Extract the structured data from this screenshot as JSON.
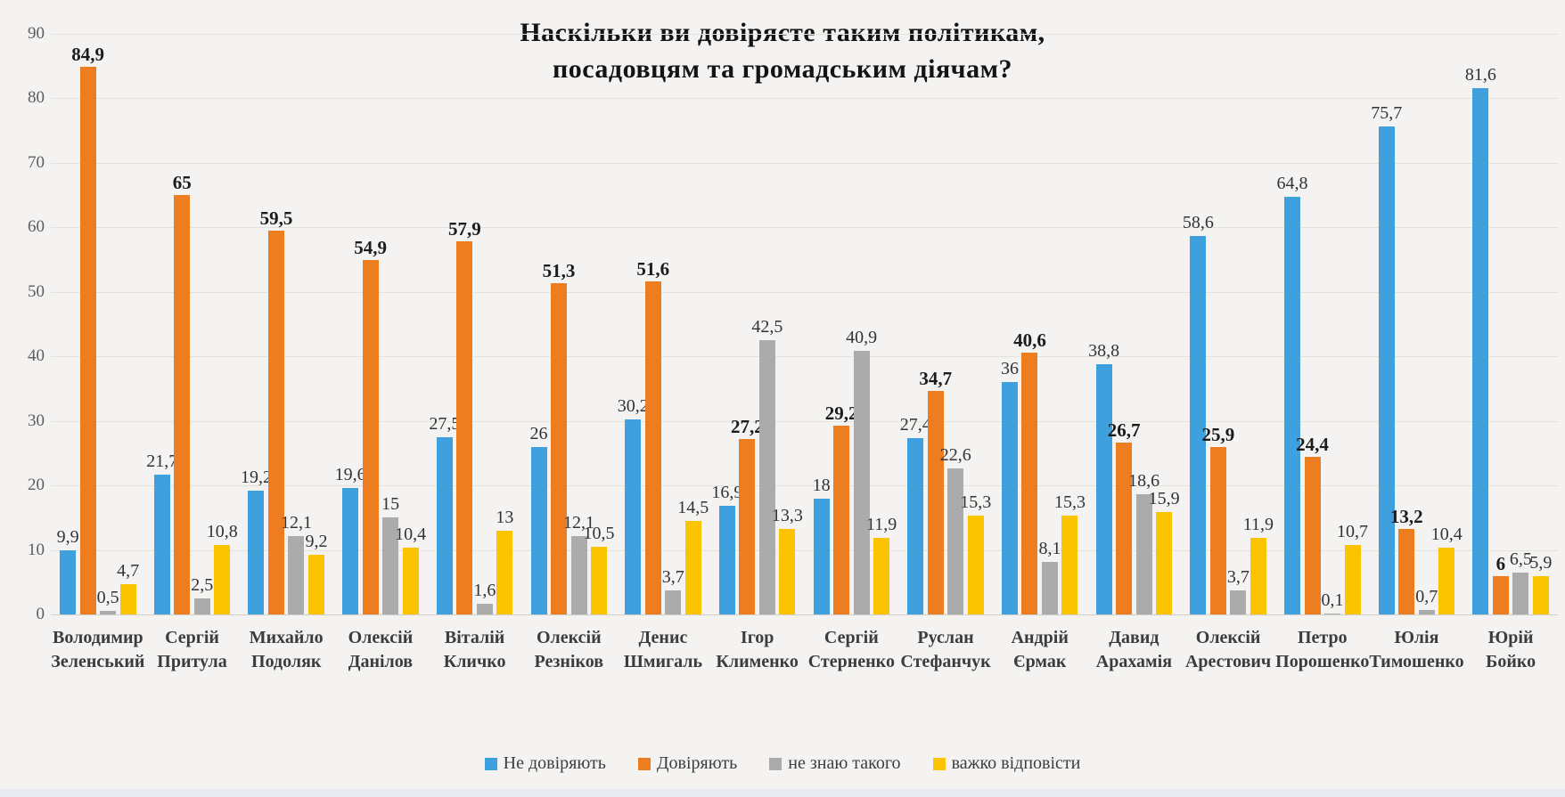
{
  "title": {
    "line1": "Наскільки ви довіряєте таким політикам,",
    "line2": "посадовцям та громадським діячам?"
  },
  "colors": {
    "background": "#f4f3f1",
    "gridline": "#e3e2df",
    "series_blue": "#3fa0de",
    "series_orange": "#ee7d22",
    "series_gray": "#ababab",
    "series_yellow": "#fcc400"
  },
  "chart_data": {
    "type": "bar",
    "title": "Наскільки ви довіряєте таким політикам, посадовцям та громадським діячам?",
    "categories": [
      "Володимир Зеленський",
      "Сергій Притула",
      "Михайло Подоляк",
      "Олексій Данілов",
      "Віталій Кличко",
      "Олексій Резніков",
      "Денис Шмигаль",
      "Ігор Клименко",
      "Сергій Стерненко",
      "Руслан Стефанчук",
      "Андрій Єрмак",
      "Давид Арахамія",
      "Олексій Арестович",
      "Петро Порошенко",
      "Юлія Тимошенко",
      "Юрій Бойко"
    ],
    "series": [
      {
        "name": "Не довіряють",
        "color": "#3fa0de",
        "bold_labels": false,
        "values": [
          9.9,
          21.7,
          19.2,
          19.6,
          27.5,
          26,
          30.2,
          16.9,
          18,
          27.4,
          36,
          38.8,
          58.6,
          64.8,
          75.7,
          81.6
        ]
      },
      {
        "name": "Довіряють",
        "color": "#ee7d22",
        "bold_labels": true,
        "values": [
          84.9,
          65,
          59.5,
          54.9,
          57.9,
          51.3,
          51.6,
          27.2,
          29.2,
          34.7,
          40.6,
          26.7,
          25.9,
          24.4,
          13.2,
          6
        ]
      },
      {
        "name": "не знаю такого",
        "color": "#ababab",
        "bold_labels": false,
        "values": [
          0.5,
          2.5,
          12.1,
          15,
          1.6,
          12.1,
          3.7,
          42.5,
          40.9,
          22.6,
          8.1,
          18.6,
          3.7,
          0.1,
          0.7,
          6.5
        ]
      },
      {
        "name": "важко відповісти",
        "color": "#fcc400",
        "bold_labels": false,
        "values": [
          4.7,
          10.8,
          9.2,
          10.4,
          13,
          10.5,
          14.5,
          13.3,
          11.9,
          15.3,
          15.3,
          15.9,
          11.9,
          10.7,
          10.4,
          5.9
        ]
      }
    ],
    "decimal_separator": ",",
    "ylabel": "",
    "xlabel": "",
    "ylim": [
      0,
      90
    ],
    "ytick_step": 10,
    "yticks": [
      0,
      10,
      20,
      30,
      40,
      50,
      60,
      70,
      80,
      90
    ],
    "grid": true,
    "data_labels": true,
    "legend_position": "bottom"
  }
}
